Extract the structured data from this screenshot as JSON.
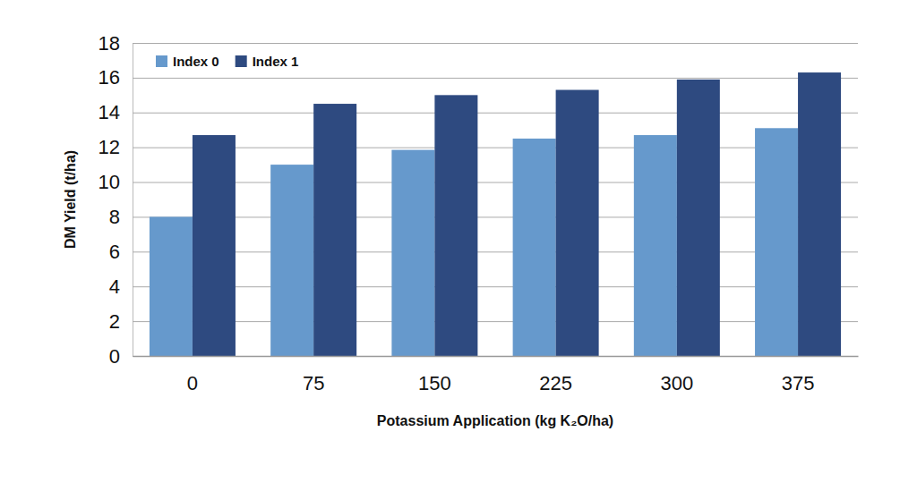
{
  "chart_data": {
    "type": "bar",
    "x_label": "Potassium Application (kg K₂O/ha)",
    "y_label": "DM Yield (t/ha)",
    "categories": [
      "0",
      "75",
      "150",
      "225",
      "300",
      "375"
    ],
    "series": [
      {
        "name": "Index 0",
        "color": "#6699cc",
        "values": [
          8.0,
          11.0,
          11.85,
          12.5,
          12.7,
          13.1
        ]
      },
      {
        "name": "Index 1",
        "color": "#2e4a80",
        "values": [
          12.7,
          14.5,
          15.0,
          15.3,
          15.9,
          16.3
        ]
      }
    ],
    "ylim": [
      0,
      18
    ],
    "yticks": [
      0,
      2,
      4,
      6,
      8,
      10,
      12,
      14,
      16,
      18
    ],
    "grid": true,
    "legend": "top-left"
  }
}
